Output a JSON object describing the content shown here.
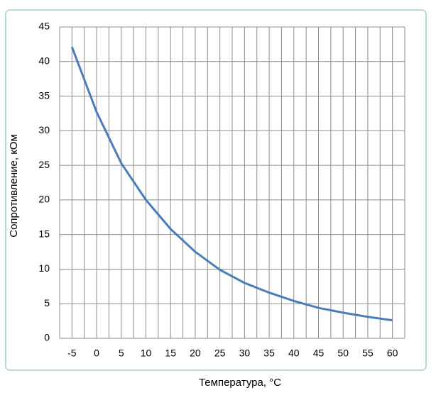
{
  "chart_data": {
    "type": "line",
    "x_label": "Температура,  °C",
    "y_label": "Сопротивление, кОм",
    "x": [
      -5,
      0,
      5,
      10,
      15,
      20,
      25,
      30,
      35,
      40,
      45,
      50,
      55,
      60
    ],
    "series": [
      {
        "color": "#4a7ebb",
        "values": [
          42.1,
          32.7,
          25.3,
          20.0,
          15.8,
          12.5,
          9.9,
          8.0,
          6.6,
          5.4,
          4.4,
          3.7,
          3.1,
          2.6
        ]
      }
    ],
    "xlim": [
      -7.5,
      62.5
    ],
    "xticks": [
      -5,
      0,
      5,
      10,
      15,
      20,
      25,
      30,
      35,
      40,
      45,
      50,
      55,
      60
    ],
    "ylim": [
      0,
      45
    ],
    "yticks": [
      0,
      5,
      10,
      15,
      20,
      25,
      30,
      35,
      40,
      45
    ],
    "grid": true
  }
}
